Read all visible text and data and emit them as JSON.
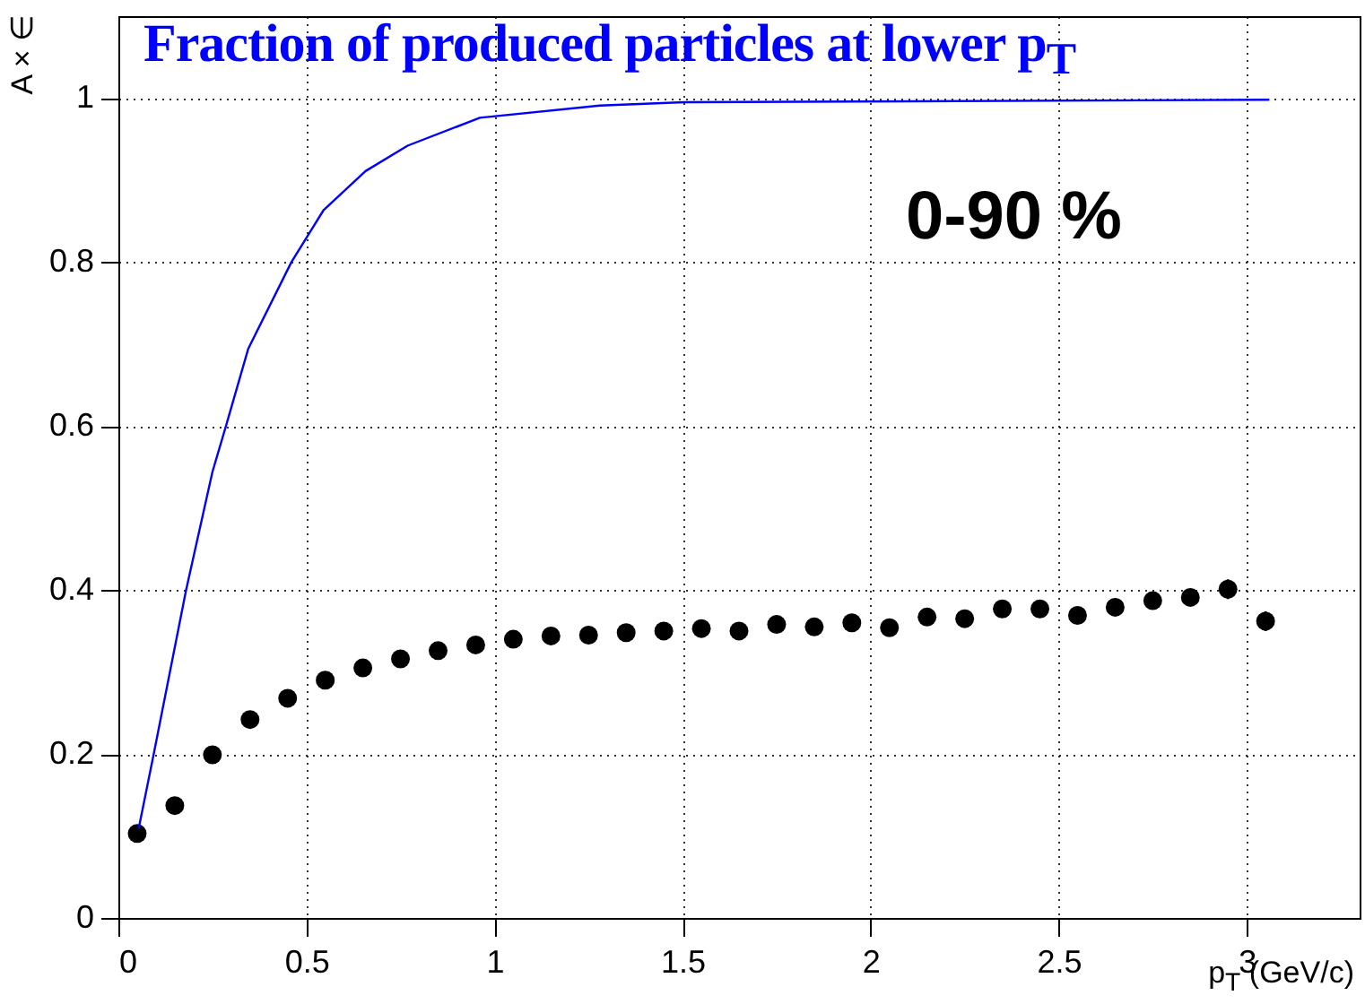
{
  "chart_data": {
    "type": "scatter",
    "title": "Fraction of produced particles at lower p$_{T}$",
    "xlabel": "p$_{T}$ (GeV/c)",
    "ylabel": "A × ∈",
    "annotations": [
      "0-90 %"
    ],
    "xlim": [
      0,
      3.3
    ],
    "ylim": [
      0,
      1.1
    ],
    "xticks": [
      0,
      0.5,
      1,
      1.5,
      2,
      2.5,
      3
    ],
    "yticks": [
      0,
      0.2,
      0.4,
      0.6,
      0.8,
      1
    ],
    "grid": true,
    "marker": "circle",
    "series": [
      {
        "color": "#000000",
        "x": [
          0.05,
          0.15,
          0.25,
          0.35,
          0.45,
          0.55,
          0.65,
          0.75,
          0.85,
          0.95,
          1.05,
          1.15,
          1.25,
          1.35,
          1.45,
          1.55,
          1.65,
          1.75,
          1.85,
          1.95,
          2.05,
          2.15,
          2.25,
          2.35,
          2.45,
          2.55,
          2.65,
          2.75,
          2.85,
          2.95,
          3.05
        ],
        "values": [
          0.103,
          0.137,
          0.199,
          0.242,
          0.268,
          0.29,
          0.305,
          0.316,
          0.326,
          0.333,
          0.34,
          0.344,
          0.345,
          0.348,
          0.35,
          0.353,
          0.35,
          0.358,
          0.355,
          0.36,
          0.354,
          0.367,
          0.365,
          0.377,
          0.377,
          0.369,
          0.379,
          0.387,
          0.391,
          0.401,
          0.362
        ],
        "errors": [
          null,
          null,
          null,
          null,
          null,
          null,
          null,
          null,
          null,
          null,
          null,
          null,
          null,
          null,
          null,
          null,
          null,
          null,
          null,
          null,
          null,
          null,
          null,
          null,
          null,
          null,
          null,
          null,
          0.008,
          0.012,
          0.012
        ]
      },
      {
        "type": "line",
        "color": "#0000ff",
        "marker": "none",
        "x": [
          0.054,
          0.094,
          0.18,
          0.25,
          0.286,
          0.345,
          0.46,
          0.545,
          0.657,
          0.769,
          0.961,
          1.28,
          1.505,
          3.06
        ],
        "values": [
          0.109,
          0.2,
          0.4,
          0.544,
          0.6,
          0.694,
          0.8,
          0.863,
          0.911,
          0.942,
          0.976,
          0.991,
          0.995,
          0.998
        ]
      }
    ]
  }
}
